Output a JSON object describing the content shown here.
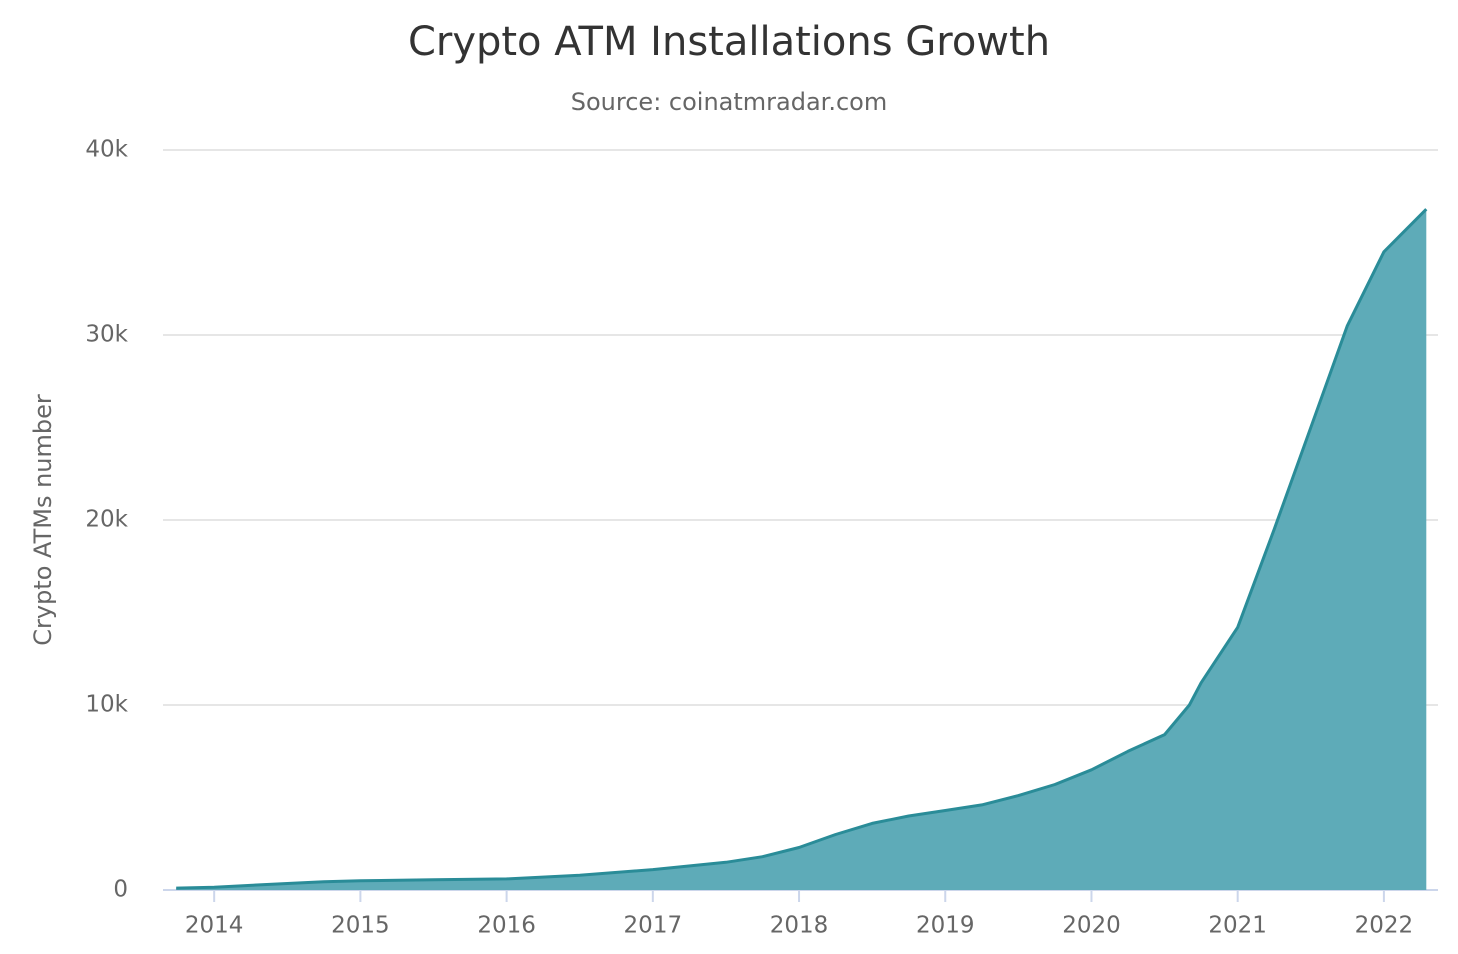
{
  "chart_data": {
    "type": "area",
    "title": "Crypto ATM Installations Growth",
    "subtitle": "Source: coinatmradar.com",
    "y_label": "Crypto ATMs number",
    "x": [
      2013.74,
      2014.0,
      2014.5,
      2014.75,
      2015.0,
      2015.5,
      2016.0,
      2016.5,
      2017.0,
      2017.5,
      2017.75,
      2018.0,
      2018.25,
      2018.5,
      2018.75,
      2019.0,
      2019.25,
      2019.5,
      2019.75,
      2020.0,
      2020.25,
      2020.5,
      2020.67,
      2020.75,
      2021.0,
      2021.25,
      2021.5,
      2021.75,
      2022.0,
      2022.29
    ],
    "values": [
      100,
      150,
      350,
      450,
      500,
      550,
      600,
      800,
      1100,
      1500,
      1800,
      2300,
      3000,
      3600,
      4000,
      4300,
      4600,
      5100,
      5700,
      6500,
      7500,
      8400,
      10000,
      11200,
      14200,
      19500,
      25000,
      30500,
      34500,
      36800
    ],
    "color": "#5eabb8",
    "line_color": "#2a8c98",
    "xlim": [
      2013.65,
      2022.37
    ],
    "xticks": [
      2014,
      2015,
      2016,
      2017,
      2018,
      2019,
      2020,
      2021,
      2022
    ],
    "ylim": [
      0,
      40000
    ],
    "yticks": [
      0,
      {
        "value": 10000,
        "label": "10k"
      },
      {
        "value": 20000,
        "label": "20k"
      },
      {
        "value": 30000,
        "label": "30k"
      },
      {
        "value": 40000,
        "label": "40k"
      }
    ],
    "grid": true
  }
}
